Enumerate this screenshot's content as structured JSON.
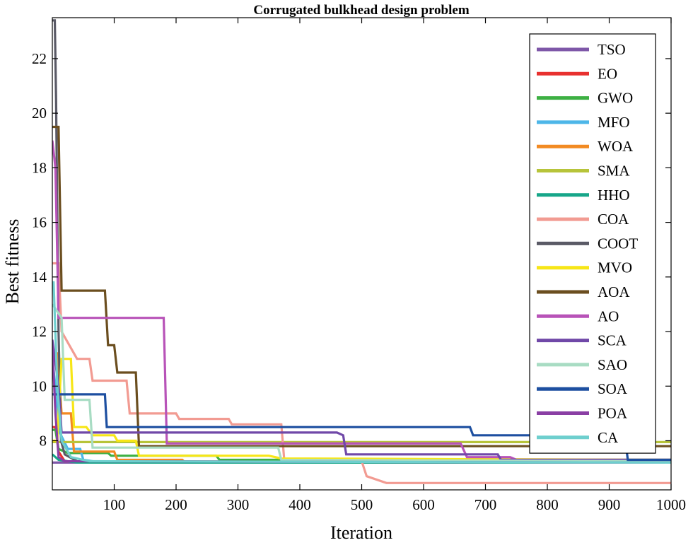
{
  "chart_data": {
    "type": "line",
    "title": "Corrugated bulkhead design problem",
    "xlabel": "Iteration",
    "ylabel": "Best fitness",
    "xlim": [
      0,
      1000
    ],
    "ylim": [
      6.2,
      23.5
    ],
    "xticks": [
      100,
      200,
      300,
      400,
      500,
      600,
      700,
      800,
      900,
      1000
    ],
    "yticks": [
      8,
      10,
      12,
      14,
      16,
      18,
      20,
      22
    ],
    "legend_position": "top-right",
    "series": [
      {
        "name": "TSO",
        "color": "#7E57A8",
        "points": [
          [
            0,
            7.2
          ],
          [
            1000,
            7.2
          ]
        ]
      },
      {
        "name": "EO",
        "color": "#E8312F",
        "points": [
          [
            0,
            8.5
          ],
          [
            5,
            8.5
          ],
          [
            10,
            7.6
          ],
          [
            20,
            7.25
          ],
          [
            1000,
            7.2
          ]
        ]
      },
      {
        "name": "GWO",
        "color": "#3DB043",
        "points": [
          [
            0,
            8.4
          ],
          [
            5,
            8.4
          ],
          [
            10,
            7.7
          ],
          [
            25,
            7.55
          ],
          [
            90,
            7.55
          ],
          [
            95,
            7.45
          ],
          [
            265,
            7.45
          ],
          [
            270,
            7.3
          ],
          [
            1000,
            7.3
          ]
        ]
      },
      {
        "name": "MFO",
        "color": "#4DB6E8",
        "points": [
          [
            0,
            11.0
          ],
          [
            5,
            10.0
          ],
          [
            12,
            8.3
          ],
          [
            25,
            7.7
          ],
          [
            45,
            7.7
          ],
          [
            50,
            7.3
          ],
          [
            80,
            7.2
          ],
          [
            1000,
            7.2
          ]
        ]
      },
      {
        "name": "WOA",
        "color": "#F28A22",
        "points": [
          [
            0,
            11.2
          ],
          [
            8,
            11.2
          ],
          [
            15,
            9.0
          ],
          [
            30,
            9.0
          ],
          [
            35,
            7.6
          ],
          [
            100,
            7.6
          ],
          [
            105,
            7.3
          ],
          [
            210,
            7.3
          ],
          [
            215,
            7.2
          ],
          [
            1000,
            7.2
          ]
        ]
      },
      {
        "name": "SMA",
        "color": "#B7C43A",
        "points": [
          [
            0,
            7.95
          ],
          [
            1000,
            7.95
          ]
        ]
      },
      {
        "name": "HHO",
        "color": "#17A689",
        "points": [
          [
            0,
            7.5
          ],
          [
            10,
            7.3
          ],
          [
            40,
            7.2
          ],
          [
            1000,
            7.2
          ]
        ]
      },
      {
        "name": "COA",
        "color": "#F29B92",
        "points": [
          [
            0,
            14.5
          ],
          [
            10,
            14.5
          ],
          [
            15,
            12.0
          ],
          [
            40,
            11.0
          ],
          [
            60,
            11.0
          ],
          [
            65,
            10.2
          ],
          [
            120,
            10.2
          ],
          [
            125,
            9.0
          ],
          [
            200,
            9.0
          ],
          [
            205,
            8.8
          ],
          [
            285,
            8.8
          ],
          [
            290,
            8.6
          ],
          [
            370,
            8.6
          ],
          [
            375,
            7.25
          ],
          [
            500,
            7.25
          ],
          [
            508,
            6.7
          ],
          [
            540,
            6.45
          ],
          [
            1000,
            6.45
          ]
        ]
      },
      {
        "name": "COOT",
        "color": "#5A5A66",
        "points": [
          [
            0,
            23.4
          ],
          [
            4,
            23.4
          ],
          [
            6,
            20.5
          ],
          [
            10,
            12.0
          ],
          [
            14,
            8.0
          ],
          [
            20,
            7.5
          ],
          [
            40,
            7.25
          ],
          [
            1000,
            7.2
          ]
        ]
      },
      {
        "name": "MVO",
        "color": "#F7E617",
        "points": [
          [
            0,
            8.0
          ],
          [
            8,
            8.0
          ],
          [
            10,
            9.0
          ],
          [
            15,
            11.0
          ],
          [
            30,
            11.0
          ],
          [
            35,
            8.5
          ],
          [
            55,
            8.5
          ],
          [
            65,
            8.2
          ],
          [
            100,
            8.2
          ],
          [
            105,
            8.0
          ],
          [
            135,
            8.0
          ],
          [
            140,
            7.45
          ],
          [
            350,
            7.45
          ],
          [
            370,
            7.35
          ],
          [
            1000,
            7.3
          ]
        ]
      },
      {
        "name": "AOA",
        "color": "#6B4E1F",
        "points": [
          [
            0,
            19.5
          ],
          [
            10,
            19.5
          ],
          [
            15,
            13.5
          ],
          [
            85,
            13.5
          ],
          [
            90,
            11.5
          ],
          [
            100,
            11.5
          ],
          [
            105,
            10.5
          ],
          [
            135,
            10.5
          ],
          [
            140,
            7.8
          ],
          [
            1000,
            7.8
          ]
        ]
      },
      {
        "name": "AO",
        "color": "#B853B8",
        "points": [
          [
            0,
            19.0
          ],
          [
            5,
            18.0
          ],
          [
            10,
            12.5
          ],
          [
            180,
            12.5
          ],
          [
            185,
            7.9
          ],
          [
            660,
            7.9
          ],
          [
            670,
            7.4
          ],
          [
            740,
            7.4
          ],
          [
            750,
            7.3
          ],
          [
            1000,
            7.3
          ]
        ]
      },
      {
        "name": "SCA",
        "color": "#7048A8",
        "points": [
          [
            0,
            11.7
          ],
          [
            10,
            10.0
          ],
          [
            15,
            8.3
          ],
          [
            460,
            8.3
          ],
          [
            470,
            8.2
          ],
          [
            475,
            7.5
          ],
          [
            720,
            7.5
          ],
          [
            725,
            7.3
          ],
          [
            1000,
            7.3
          ]
        ]
      },
      {
        "name": "SAO",
        "color": "#A8DCC3",
        "points": [
          [
            0,
            13.0
          ],
          [
            15,
            12.5
          ],
          [
            20,
            9.5
          ],
          [
            60,
            9.5
          ],
          [
            65,
            7.75
          ],
          [
            365,
            7.75
          ],
          [
            370,
            7.3
          ],
          [
            1000,
            7.25
          ]
        ]
      },
      {
        "name": "SOA",
        "color": "#1D4FA0",
        "points": [
          [
            0,
            9.7
          ],
          [
            85,
            9.7
          ],
          [
            88,
            8.5
          ],
          [
            675,
            8.5
          ],
          [
            680,
            8.2
          ],
          [
            925,
            8.2
          ],
          [
            930,
            7.3
          ],
          [
            1000,
            7.3
          ]
        ]
      },
      {
        "name": "POA",
        "color": "#8A3FA4",
        "points": [
          [
            0,
            11.5
          ],
          [
            5,
            9.0
          ],
          [
            10,
            7.4
          ],
          [
            20,
            7.25
          ],
          [
            1000,
            7.2
          ]
        ]
      },
      {
        "name": "CA",
        "color": "#6ECFCE",
        "points": [
          [
            0,
            13.8
          ],
          [
            2,
            13.8
          ],
          [
            8,
            10.0
          ],
          [
            15,
            8.0
          ],
          [
            30,
            7.4
          ],
          [
            60,
            7.25
          ],
          [
            1000,
            7.2
          ]
        ]
      }
    ]
  }
}
